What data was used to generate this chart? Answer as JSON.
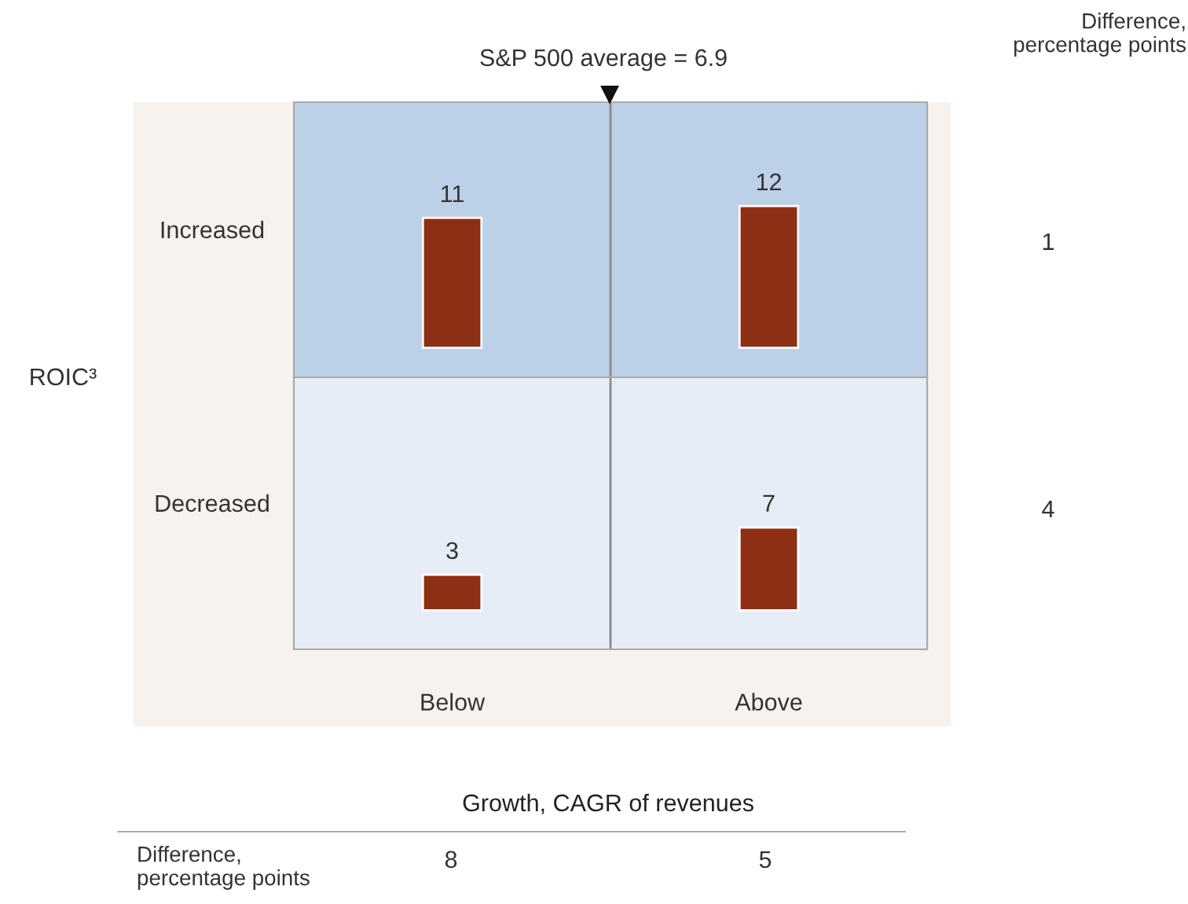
{
  "chart_data": [
    {
      "type": "bar",
      "ylabel": "Increased",
      "categories": [
        null,
        null
      ],
      "values": [
        11,
        12
      ],
      "color": "#8c2f14",
      "data_labels": true,
      "ylim": [
        -2.5,
        20.8
      ],
      "tick_labels": false,
      "grid": false,
      "legend": false,
      "annotations": [
        "S&P 500 average = 6.9",
        "Difference,\npercentage points",
        "1",
        "ROIC³"
      ]
    },
    {
      "type": "bar",
      "ylabel": "Decreased",
      "xlabel": "Growth, CAGR of revenues",
      "categories": [
        "Below",
        "Above"
      ],
      "values": [
        3,
        7
      ],
      "color": "#8c2f14",
      "data_labels": true,
      "ylim": [
        -3.3,
        19.7
      ],
      "tick_labels": "x",
      "grid": false,
      "legend": false,
      "annotations": [
        "4",
        "Difference,\npercentage points",
        "8",
        "5"
      ]
    }
  ]
}
